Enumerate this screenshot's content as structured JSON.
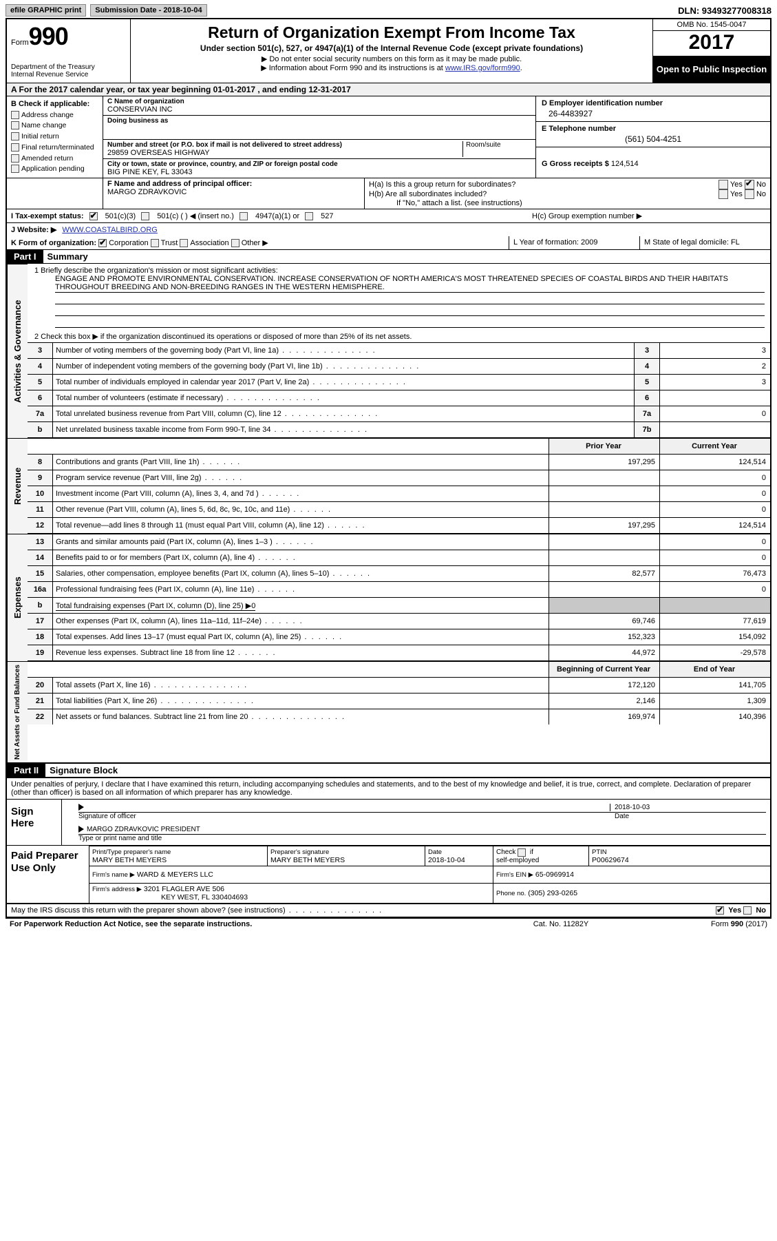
{
  "topbar": {
    "efile": "efile GRAPHIC print",
    "submission": "Submission Date - 2018-10-04",
    "dln": "DLN: 93493277008318"
  },
  "header": {
    "form_label": "Form",
    "form_number": "990",
    "dept1": "Department of the Treasury",
    "dept2": "Internal Revenue Service",
    "title": "Return of Organization Exempt From Income Tax",
    "sub1": "Under section 501(c), 527, or 4947(a)(1) of the Internal Revenue Code (except private foundations)",
    "sub2a": "▶ Do not enter social security numbers on this form as it may be made public.",
    "sub2b": "▶ Information about Form 990 and its instructions is at ",
    "link": "www.IRS.gov/form990",
    "omb": "OMB No. 1545-0047",
    "year": "2017",
    "open": "Open to Public Inspection"
  },
  "rowA": "A   For the 2017 calendar year, or tax year beginning 01-01-2017    , and ending 12-31-2017",
  "B": {
    "hdr": "B Check if applicable:",
    "items": [
      "Address change",
      "Name change",
      "Initial return",
      "Final return/terminated",
      "Amended return",
      "Application pending"
    ]
  },
  "C": {
    "name_lbl": "C Name of organization",
    "name": "CONSERVIAN INC",
    "dba_lbl": "Doing business as",
    "addr_lbl": "Number and street (or P.O. box if mail is not delivered to street address)",
    "room_lbl": "Room/suite",
    "addr": "29859 OVERSEAS HIGHWAY",
    "city_lbl": "City or town, state or province, country, and ZIP or foreign postal code",
    "city": "BIG PINE KEY, FL  33043"
  },
  "D": {
    "ein_lbl": "D Employer identification number",
    "ein": "26-4483927",
    "tel_lbl": "E Telephone number",
    "tel": "(561) 504-4251",
    "gross_lbl": "G Gross receipts $",
    "gross": "124,514"
  },
  "F": {
    "lbl": "F Name and address of principal officer:",
    "val": "MARGO ZDRAVKOVIC"
  },
  "H": {
    "a": "H(a)  Is this a group return for subordinates?",
    "b": "H(b)  Are all subordinates included?",
    "note": "If \"No,\" attach a list. (see instructions)",
    "c": "H(c)  Group exemption number ▶",
    "yes": "Yes",
    "no": "No"
  },
  "I": {
    "lbl": "I   Tax-exempt status:",
    "opts": [
      "501(c)(3)",
      "501(c) (   ) ◀ (insert no.)",
      "4947(a)(1) or",
      "527"
    ]
  },
  "J": {
    "lbl": "J   Website: ▶",
    "val": "WWW.COASTALBIRD.ORG"
  },
  "K": {
    "lbl": "K Form of organization:",
    "opts": [
      "Corporation",
      "Trust",
      "Association",
      "Other ▶"
    ]
  },
  "L": "L Year of formation: 2009",
  "M": "M State of legal domicile: FL",
  "part1": {
    "hdr": "Part I",
    "title": "Summary"
  },
  "mission": {
    "q1": "1  Briefly describe the organization's mission or most significant activities:",
    "txt": "ENGAGE AND PROMOTE ENVIRONMENTAL CONSERVATION. INCREASE CONSERVATION OF NORTH AMERICA'S MOST THREATENED SPECIES OF COASTAL BIRDS AND THEIR HABITATS THROUGHOUT BREEDING AND NON-BREEDING RANGES IN THE WESTERN HEMISPHERE.",
    "q2": "2  Check this box ▶       if the organization discontinued its operations or disposed of more than 25% of its net assets."
  },
  "ag_rows": [
    {
      "n": "3",
      "d": "Number of voting members of the governing body (Part VI, line 1a)",
      "box": "3",
      "v": "3"
    },
    {
      "n": "4",
      "d": "Number of independent voting members of the governing body (Part VI, line 1b)",
      "box": "4",
      "v": "2"
    },
    {
      "n": "5",
      "d": "Total number of individuals employed in calendar year 2017 (Part V, line 2a)",
      "box": "5",
      "v": "3"
    },
    {
      "n": "6",
      "d": "Total number of volunteers (estimate if necessary)",
      "box": "6",
      "v": ""
    },
    {
      "n": "7a",
      "d": "Total unrelated business revenue from Part VIII, column (C), line 12",
      "box": "7a",
      "v": "0"
    },
    {
      "n": "b",
      "d": "Net unrelated business taxable income from Form 990-T, line 34",
      "box": "7b",
      "v": ""
    }
  ],
  "col_hdr": {
    "py": "Prior Year",
    "cy": "Current Year"
  },
  "rev_rows": [
    {
      "n": "8",
      "d": "Contributions and grants (Part VIII, line 1h)",
      "py": "197,295",
      "cy": "124,514"
    },
    {
      "n": "9",
      "d": "Program service revenue (Part VIII, line 2g)",
      "py": "",
      "cy": "0"
    },
    {
      "n": "10",
      "d": "Investment income (Part VIII, column (A), lines 3, 4, and 7d )",
      "py": "",
      "cy": "0"
    },
    {
      "n": "11",
      "d": "Other revenue (Part VIII, column (A), lines 5, 6d, 8c, 9c, 10c, and 11e)",
      "py": "",
      "cy": "0"
    },
    {
      "n": "12",
      "d": "Total revenue—add lines 8 through 11 (must equal Part VIII, column (A), line 12)",
      "py": "197,295",
      "cy": "124,514"
    }
  ],
  "exp_rows": [
    {
      "n": "13",
      "d": "Grants and similar amounts paid (Part IX, column (A), lines 1–3 )",
      "py": "",
      "cy": "0"
    },
    {
      "n": "14",
      "d": "Benefits paid to or for members (Part IX, column (A), line 4)",
      "py": "",
      "cy": "0"
    },
    {
      "n": "15",
      "d": "Salaries, other compensation, employee benefits (Part IX, column (A), lines 5–10)",
      "py": "82,577",
      "cy": "76,473"
    },
    {
      "n": "16a",
      "d": "Professional fundraising fees (Part IX, column (A), line 11e)",
      "py": "",
      "cy": "0"
    },
    {
      "n": "b",
      "d": "Total fundraising expenses (Part IX, column (D), line 25) ▶0",
      "py": "grey",
      "cy": "grey"
    },
    {
      "n": "17",
      "d": "Other expenses (Part IX, column (A), lines 11a–11d, 11f–24e)",
      "py": "69,746",
      "cy": "77,619"
    },
    {
      "n": "18",
      "d": "Total expenses. Add lines 13–17 (must equal Part IX, column (A), line 25)",
      "py": "152,323",
      "cy": "154,092"
    },
    {
      "n": "19",
      "d": "Revenue less expenses. Subtract line 18 from line 12",
      "py": "44,972",
      "cy": "-29,578"
    }
  ],
  "na_hdr": {
    "b": "Beginning of Current Year",
    "e": "End of Year"
  },
  "na_rows": [
    {
      "n": "20",
      "d": "Total assets (Part X, line 16)",
      "b": "172,120",
      "e": "141,705"
    },
    {
      "n": "21",
      "d": "Total liabilities (Part X, line 26)",
      "b": "2,146",
      "e": "1,309"
    },
    {
      "n": "22",
      "d": "Net assets or fund balances. Subtract line 21 from line 20",
      "b": "169,974",
      "e": "140,396"
    }
  ],
  "part2": {
    "hdr": "Part II",
    "title": "Signature Block"
  },
  "sig": {
    "intro": "Under penalties of perjury, I declare that I have examined this return, including accompanying schedules and statements, and to the best of my knowledge and belief, it is true, correct, and complete. Declaration of preparer (other than officer) is based on all information of which preparer has any knowledge.",
    "sign_here": "Sign Here",
    "officer_sig": "Signature of officer",
    "date": "Date",
    "date_val": "2018-10-03",
    "name_title": "MARGO ZDRAVKOVIC PRESIDENT",
    "name_cap": "Type or print name and title"
  },
  "prep": {
    "hdr": "Paid Preparer Use Only",
    "pname_lbl": "Print/Type preparer's name",
    "pname": "MARY BETH MEYERS",
    "psig_lbl": "Preparer's signature",
    "psig": "MARY BETH MEYERS",
    "pdate_lbl": "Date",
    "pdate": "2018-10-04",
    "chk_lbl": "Check       if self-employed",
    "ptin_lbl": "PTIN",
    "ptin": "P00629674",
    "firm_lbl": "Firm's name    ▶",
    "firm": "WARD & MEYERS LLC",
    "fein_lbl": "Firm's EIN ▶",
    "fein": "65-0969914",
    "faddr_lbl": "Firm's address ▶",
    "faddr1": "3201 FLAGLER AVE 506",
    "faddr2": "KEY WEST, FL   330404693",
    "phone_lbl": "Phone no.",
    "phone": "(305) 293-0265"
  },
  "discuss": {
    "q": "May the IRS discuss this return with the preparer shown above? (see instructions)",
    "yes": "Yes",
    "no": "No"
  },
  "footer": {
    "l": "For Paperwork Reduction Act Notice, see the separate instructions.",
    "m": "Cat. No. 11282Y",
    "r": "Form 990 (2017)"
  },
  "vlabels": {
    "ag": "Activities & Governance",
    "rev": "Revenue",
    "exp": "Expenses",
    "na": "Net Assets or Fund Balances"
  }
}
